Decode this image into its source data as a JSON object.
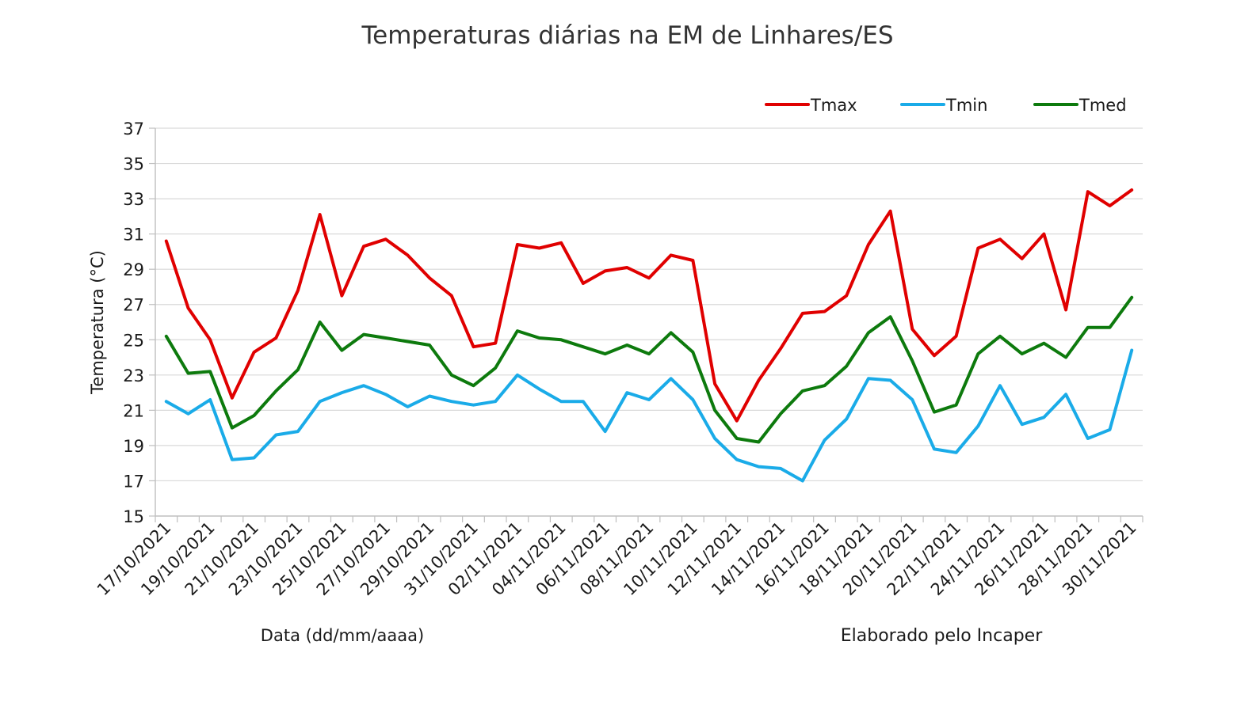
{
  "chart_data": {
    "type": "line",
    "title": "Temperaturas diárias na EM de Linhares/ES",
    "xlabel": "Data (dd/mm/aaaa)",
    "ylabel": "Temperatura (°C)",
    "note": "Elaborado pelo Incaper",
    "ylim": [
      15,
      37
    ],
    "yticks": [
      15,
      17,
      19,
      21,
      23,
      25,
      27,
      29,
      31,
      33,
      35,
      37
    ],
    "grid": true,
    "legend_position": "top-right",
    "x": [
      "17/10/2021",
      "18/10/2021",
      "19/10/2021",
      "20/10/2021",
      "21/10/2021",
      "22/10/2021",
      "23/10/2021",
      "24/10/2021",
      "25/10/2021",
      "26/10/2021",
      "27/10/2021",
      "28/10/2021",
      "29/10/2021",
      "30/10/2021",
      "31/10/2021",
      "01/11/2021",
      "02/11/2021",
      "03/11/2021",
      "04/11/2021",
      "05/11/2021",
      "06/11/2021",
      "07/11/2021",
      "08/11/2021",
      "09/11/2021",
      "10/11/2021",
      "11/11/2021",
      "12/11/2021",
      "13/11/2021",
      "14/11/2021",
      "15/11/2021",
      "16/11/2021",
      "17/11/2021",
      "18/11/2021",
      "19/11/2021",
      "20/11/2021",
      "21/11/2021",
      "22/11/2021",
      "23/11/2021",
      "24/11/2021",
      "25/11/2021",
      "26/11/2021",
      "27/11/2021",
      "28/11/2021",
      "29/11/2021",
      "30/11/2021"
    ],
    "xtick_labels": [
      "17/10/2021",
      "19/10/2021",
      "21/10/2021",
      "23/10/2021",
      "25/10/2021",
      "27/10/2021",
      "29/10/2021",
      "31/10/2021",
      "02/11/2021",
      "04/11/2021",
      "06/11/2021",
      "08/11/2021",
      "10/11/2021",
      "12/11/2021",
      "14/11/2021",
      "16/11/2021",
      "18/11/2021",
      "20/11/2021",
      "22/11/2021",
      "24/11/2021",
      "26/11/2021",
      "28/11/2021",
      "30/11/2021"
    ],
    "series": [
      {
        "name": "Tmax",
        "color": "#e00000",
        "values": [
          30.6,
          26.8,
          25.0,
          21.7,
          24.3,
          25.1,
          27.8,
          32.1,
          27.5,
          30.3,
          30.7,
          29.8,
          28.5,
          27.5,
          24.6,
          24.8,
          30.4,
          30.2,
          30.5,
          28.2,
          28.9,
          29.1,
          28.5,
          29.8,
          29.5,
          22.5,
          20.4,
          22.7,
          24.5,
          26.5,
          26.6,
          27.5,
          30.4,
          32.3,
          25.6,
          24.1,
          25.2,
          30.2,
          30.7,
          29.6,
          31.0,
          26.7,
          33.4,
          32.6,
          33.5
        ]
      },
      {
        "name": "Tmin",
        "color": "#1aabe8",
        "values": [
          21.5,
          20.8,
          21.6,
          18.2,
          18.3,
          19.6,
          19.8,
          21.5,
          22.0,
          22.4,
          21.9,
          21.2,
          21.8,
          21.5,
          21.3,
          21.5,
          23.0,
          22.2,
          21.5,
          21.5,
          19.8,
          22.0,
          21.6,
          22.8,
          21.6,
          19.4,
          18.2,
          17.8,
          17.7,
          17.0,
          19.3,
          20.5,
          22.8,
          22.7,
          21.6,
          18.8,
          18.6,
          20.1,
          22.4,
          20.2,
          20.6,
          21.9,
          19.4,
          19.9,
          24.4
        ]
      },
      {
        "name": "Tmed",
        "color": "#0d7a0d",
        "values": [
          25.2,
          23.1,
          23.2,
          20.0,
          20.7,
          22.1,
          23.3,
          26.0,
          24.4,
          25.3,
          25.1,
          24.9,
          24.7,
          23.0,
          22.4,
          23.4,
          25.5,
          25.1,
          25.0,
          24.6,
          24.2,
          24.7,
          24.2,
          25.4,
          24.3,
          21.0,
          19.4,
          19.2,
          20.8,
          22.1,
          22.4,
          23.5,
          25.4,
          26.3,
          23.8,
          20.9,
          21.3,
          24.2,
          25.2,
          24.2,
          24.8,
          24.0,
          25.7,
          25.7,
          27.4
        ]
      }
    ]
  }
}
